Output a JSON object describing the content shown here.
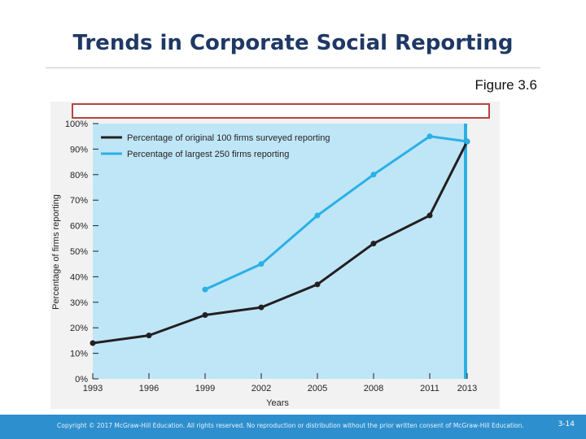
{
  "slide": {
    "title": "Trends in Corporate Social Reporting",
    "figure_label": "Figure 3.6"
  },
  "footer": {
    "copyright": "Copyright © 2017 McGraw-Hill Education. All rights reserved. No reproduction or distribution without the prior written consent of McGraw-Hill Education.",
    "page": "3-14"
  },
  "colors": {
    "plot_background": "#bfe6f7",
    "series_original": "#231f20",
    "series_largest": "#2bb0e6",
    "footer": "#2e8fce",
    "title": "#1f3864"
  },
  "chart_data": {
    "type": "line",
    "title": "",
    "xlabel": "Years",
    "ylabel": "Percentage of firms reporting",
    "x": [
      1993,
      1996,
      1999,
      2002,
      2005,
      2008,
      2011,
      2013
    ],
    "x_tick_labels": [
      "1993",
      "1996",
      "1999",
      "2002",
      "2005",
      "2008",
      "2011",
      "2013"
    ],
    "y_tick_labels": [
      "0%",
      "10%",
      "20%",
      "30%",
      "40%",
      "50%",
      "60%",
      "70%",
      "80%",
      "90%",
      "100%"
    ],
    "ylim": [
      0,
      100
    ],
    "grid": false,
    "legend_position": "top-left",
    "series": [
      {
        "name": "Percentage of original 100 firms surveyed reporting",
        "x": [
          1993,
          1996,
          1999,
          2002,
          2005,
          2008,
          2011,
          2013
        ],
        "values": [
          14,
          17,
          25,
          28,
          37,
          53,
          64,
          93
        ]
      },
      {
        "name": "Percentage of largest 250 firms reporting",
        "x": [
          1999,
          2002,
          2005,
          2008,
          2011,
          2013
        ],
        "values": [
          35,
          45,
          64,
          80,
          95,
          93
        ]
      }
    ]
  }
}
